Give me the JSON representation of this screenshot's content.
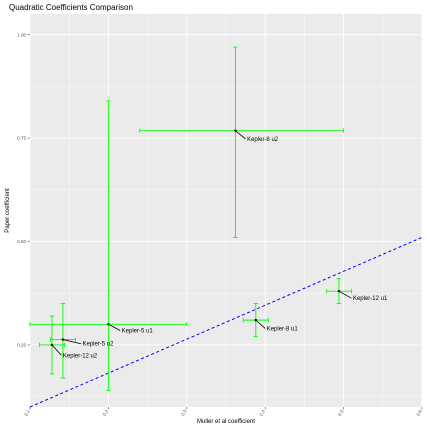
{
  "chart_data": {
    "type": "scatter",
    "title": "Quadratic Coefficients Comparison",
    "xlabel": "Muller et al coefficient",
    "ylabel": "Paper coefficient",
    "xlim": [
      0.1,
      0.6
    ],
    "ylim": [
      0.1,
      1.05
    ],
    "x_ticks": [
      0.1,
      0.2,
      0.3,
      0.4,
      0.5,
      0.6
    ],
    "x_tick_labels": [
      "0.1",
      "0.2",
      "0.3",
      "0.4",
      "0.5",
      "0.6"
    ],
    "y_ticks": [
      0.25,
      0.5,
      0.75,
      1.0
    ],
    "y_tick_labels": [
      "0.25",
      "0.50",
      "0.75",
      "1.00"
    ],
    "grid": true,
    "points": [
      {
        "label": "Kepler-8 u2",
        "x": 0.362,
        "y": 0.768,
        "xmin": 0.24,
        "xmax": 0.5,
        "ymin": 0.51,
        "ymax": 0.97,
        "label_x": 0.375,
        "label_y": 0.748
      },
      {
        "label": "Kepler-5 u1",
        "x": 0.2,
        "y": 0.3,
        "xmin": 0.1,
        "xmax": 0.3,
        "ymin": 0.14,
        "ymax": 0.84,
        "label_x": 0.215,
        "label_y": 0.285
      },
      {
        "label": "Kepler-5 u2",
        "x": 0.142,
        "y": 0.263,
        "xmin": 0.126,
        "xmax": 0.158,
        "ymin": 0.17,
        "ymax": 0.35,
        "label_x": 0.165,
        "label_y": 0.253
      },
      {
        "label": "Kepler-12 u2",
        "x": 0.128,
        "y": 0.25,
        "xmin": 0.112,
        "xmax": 0.144,
        "ymin": 0.18,
        "ymax": 0.32,
        "label_x": 0.14,
        "label_y": 0.225
      },
      {
        "label": "Kepler-8 u1",
        "x": 0.388,
        "y": 0.31,
        "xmin": 0.372,
        "xmax": 0.404,
        "ymin": 0.27,
        "ymax": 0.35,
        "label_x": 0.4,
        "label_y": 0.29
      },
      {
        "label": "Kepler-12 u1",
        "x": 0.494,
        "y": 0.38,
        "xmin": 0.478,
        "xmax": 0.51,
        "ymin": 0.35,
        "ymax": 0.41,
        "label_x": 0.51,
        "label_y": 0.363
      }
    ],
    "reference_line": {
      "style": "dashed",
      "color": "#0000ff",
      "from": [
        0.1,
        0.1
      ],
      "to": [
        0.6,
        0.51
      ]
    },
    "colors": {
      "errorbar": "#00ff00",
      "point": "#000000",
      "panel": "#ebebeb",
      "gridline": "#ffffff"
    }
  }
}
